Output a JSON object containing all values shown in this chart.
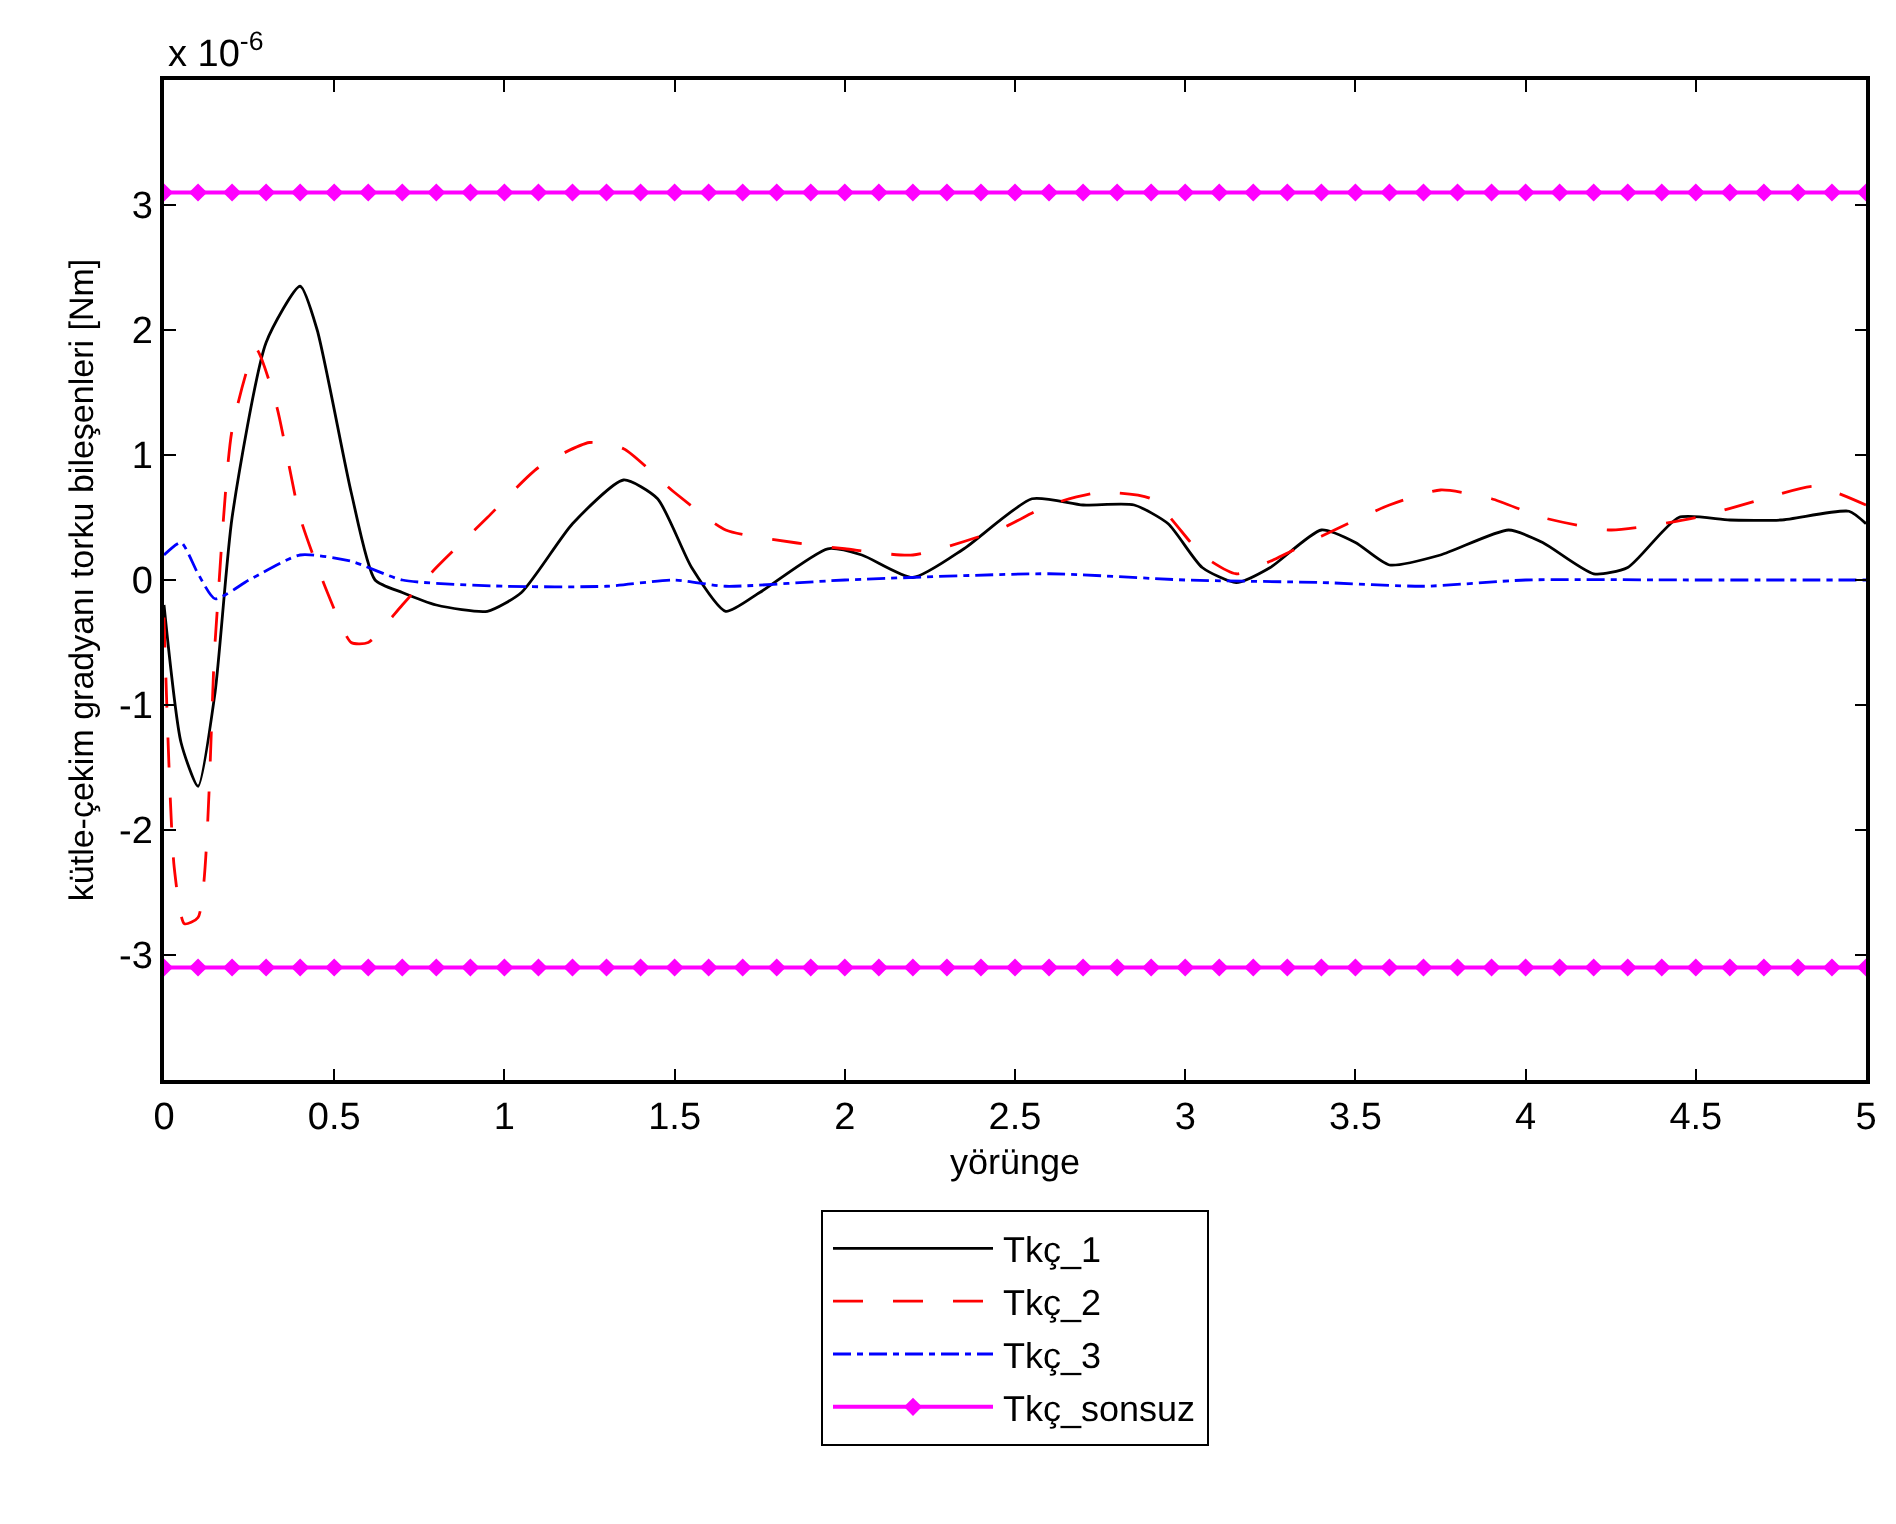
{
  "chart_data": {
    "type": "line",
    "xlabel": "yörünge",
    "ylabel": "kütle-çekim gradyanı torku bileşenleri [Nm]",
    "annotations": [
      "x 10$^{-6}$"
    ],
    "xlim": [
      0,
      5
    ],
    "xticks": [
      0,
      0.5,
      1,
      1.5,
      2,
      2.5,
      3,
      3.5,
      4,
      4.5,
      5
    ],
    "ylim": [
      -4,
      4
    ],
    "yticks": [
      -3,
      -2,
      -1,
      0,
      1,
      2,
      3
    ],
    "legend": "bottom",
    "series": [
      {
        "name": "Tkç_1",
        "color": "#000000",
        "line_style": "solid",
        "x": [
          0,
          0.05,
          0.1,
          0.15,
          0.2,
          0.3,
          0.4,
          0.45,
          0.55,
          0.62,
          0.7,
          0.8,
          0.95,
          1.05,
          1.2,
          1.35,
          1.45,
          1.55,
          1.65,
          1.75,
          1.95,
          2.05,
          2.2,
          2.35,
          2.55,
          2.7,
          2.85,
          2.95,
          3.05,
          3.15,
          3.25,
          3.4,
          3.5,
          3.6,
          3.75,
          3.95,
          4.05,
          4.2,
          4.3,
          4.45,
          4.6,
          4.75,
          4.95,
          5
        ],
        "values": [
          -0.2,
          -1.3,
          -1.65,
          -0.9,
          0.5,
          1.9,
          2.35,
          2.0,
          0.7,
          0.0,
          -0.1,
          -0.2,
          -0.25,
          -0.1,
          0.45,
          0.8,
          0.65,
          0.1,
          -0.25,
          -0.1,
          0.25,
          0.2,
          0.02,
          0.25,
          0.65,
          0.6,
          0.6,
          0.45,
          0.1,
          -0.02,
          0.1,
          0.4,
          0.3,
          0.12,
          0.2,
          0.4,
          0.3,
          0.05,
          0.1,
          0.5,
          0.48,
          0.48,
          0.55,
          0.45
        ]
      },
      {
        "name": "Tkç_2",
        "color": "#ff0000",
        "line_style": "dashed",
        "x": [
          0,
          0.03,
          0.06,
          0.1,
          0.15,
          0.2,
          0.27,
          0.33,
          0.4,
          0.48,
          0.55,
          0.6,
          0.7,
          0.8,
          0.95,
          1.1,
          1.25,
          1.35,
          1.5,
          1.65,
          1.85,
          2.0,
          2.2,
          2.45,
          2.6,
          2.75,
          2.9,
          3.05,
          3.15,
          3.25,
          3.4,
          3.6,
          3.75,
          3.9,
          4.05,
          4.25,
          4.5,
          4.7,
          4.85,
          5
        ],
        "values": [
          -0.3,
          -2.3,
          -2.75,
          -2.7,
          -0.5,
          1.2,
          1.85,
          1.4,
          0.5,
          -0.1,
          -0.5,
          -0.5,
          -0.2,
          0.1,
          0.5,
          0.9,
          1.1,
          1.05,
          0.7,
          0.4,
          0.3,
          0.25,
          0.2,
          0.4,
          0.6,
          0.7,
          0.65,
          0.2,
          0.05,
          0.15,
          0.35,
          0.6,
          0.72,
          0.65,
          0.5,
          0.4,
          0.5,
          0.65,
          0.75,
          0.6
        ]
      },
      {
        "name": "Tkç_3",
        "color": "#0000ff",
        "line_style": "dashdot",
        "x": [
          0,
          0.05,
          0.1,
          0.15,
          0.25,
          0.4,
          0.55,
          0.7,
          1.0,
          1.3,
          1.5,
          1.65,
          2.0,
          2.6,
          3.0,
          3.4,
          3.7,
          4.0,
          4.5,
          5
        ],
        "values": [
          0.2,
          0.3,
          0.05,
          -0.15,
          0.0,
          0.2,
          0.15,
          0.0,
          -0.05,
          -0.05,
          0.0,
          -0.05,
          0.0,
          0.05,
          0.0,
          -0.02,
          -0.05,
          0.0,
          0.0,
          0.0
        ]
      },
      {
        "name": "Tkç_sonsuz",
        "color": "#ff00ff",
        "line_style": "solid",
        "marker": "diamond",
        "x": [
          0,
          0.1,
          0.2,
          0.3,
          0.4,
          0.5,
          0.6,
          0.7,
          0.8,
          0.9,
          1,
          1.1,
          1.2,
          1.3,
          1.4,
          1.5,
          1.6,
          1.7,
          1.8,
          1.9,
          2,
          2.1,
          2.2,
          2.3,
          2.4,
          2.5,
          2.6,
          2.7,
          2.8,
          2.9,
          3,
          3.1,
          3.2,
          3.3,
          3.4,
          3.5,
          3.6,
          3.7,
          3.8,
          3.9,
          4,
          4.1,
          4.2,
          4.3,
          4.4,
          4.5,
          4.6,
          4.7,
          4.8,
          4.9,
          5
        ],
        "values": [
          3.1,
          3.1,
          3.1,
          3.1,
          3.1,
          3.1,
          3.1,
          3.1,
          3.1,
          3.1,
          3.1,
          3.1,
          3.1,
          3.1,
          3.1,
          3.1,
          3.1,
          3.1,
          3.1,
          3.1,
          3.1,
          3.1,
          3.1,
          3.1,
          3.1,
          3.1,
          3.1,
          3.1,
          3.1,
          3.1,
          3.1,
          3.1,
          3.1,
          3.1,
          3.1,
          3.1,
          3.1,
          3.1,
          3.1,
          3.1,
          3.1,
          3.1,
          3.1,
          3.1,
          3.1,
          3.1,
          3.1,
          3.1,
          3.1,
          3.1,
          3.1
        ]
      },
      {
        "color": "#ff00ff",
        "line_style": "solid",
        "marker": "diamond",
        "x": [
          0,
          0.1,
          0.2,
          0.3,
          0.4,
          0.5,
          0.6,
          0.7,
          0.8,
          0.9,
          1,
          1.1,
          1.2,
          1.3,
          1.4,
          1.5,
          1.6,
          1.7,
          1.8,
          1.9,
          2,
          2.1,
          2.2,
          2.3,
          2.4,
          2.5,
          2.6,
          2.7,
          2.8,
          2.9,
          3,
          3.1,
          3.2,
          3.3,
          3.4,
          3.5,
          3.6,
          3.7,
          3.8,
          3.9,
          4,
          4.1,
          4.2,
          4.3,
          4.4,
          4.5,
          4.6,
          4.7,
          4.8,
          4.9,
          5
        ],
        "values": [
          -3.1,
          -3.1,
          -3.1,
          -3.1,
          -3.1,
          -3.1,
          -3.1,
          -3.1,
          -3.1,
          -3.1,
          -3.1,
          -3.1,
          -3.1,
          -3.1,
          -3.1,
          -3.1,
          -3.1,
          -3.1,
          -3.1,
          -3.1,
          -3.1,
          -3.1,
          -3.1,
          -3.1,
          -3.1,
          -3.1,
          -3.1,
          -3.1,
          -3.1,
          -3.1,
          -3.1,
          -3.1,
          -3.1,
          -3.1,
          -3.1,
          -3.1,
          -3.1,
          -3.1,
          -3.1,
          -3.1,
          -3.1,
          -3.1,
          -3.1,
          -3.1,
          -3.1,
          -3.1,
          -3.1,
          -3.1,
          -3.1,
          -3.1,
          -3.1
        ]
      }
    ]
  }
}
